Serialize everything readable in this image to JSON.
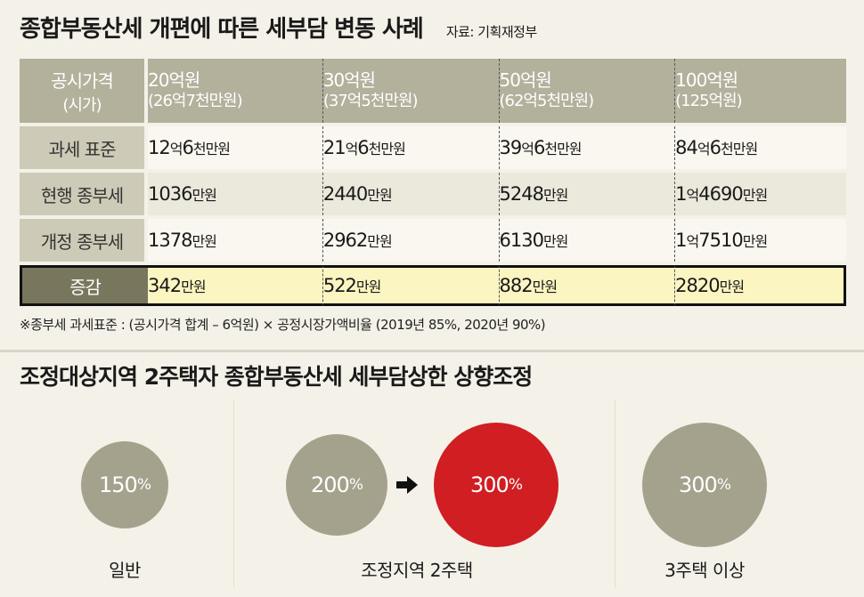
{
  "title": "종합부동산세 개편에 따른 세부담 변동 사례",
  "source": "자료: 기획재정부",
  "table": {
    "corner": {
      "line1": "공시가격",
      "line2": "(시가)"
    },
    "columns": [
      {
        "price": "20억원",
        "market": "(26억7천만원)"
      },
      {
        "price": "30억원",
        "market": "(37억5천만원)"
      },
      {
        "price": "50억원",
        "market": "(62억5천만원)"
      },
      {
        "price": "100억원",
        "market": "(125억원)"
      }
    ],
    "rows": [
      {
        "label": "과세 표준",
        "cells": [
          {
            "a": "12",
            "b": "억",
            "c": "6",
            "d": "천만원"
          },
          {
            "a": "21",
            "b": "억",
            "c": "6",
            "d": "천만원"
          },
          {
            "a": "39",
            "b": "억",
            "c": "6",
            "d": "천만원"
          },
          {
            "a": "84",
            "b": "억",
            "c": "6",
            "d": "천만원"
          }
        ]
      },
      {
        "label": "현행 종부세",
        "cells": [
          {
            "a": "",
            "b": "",
            "c": "1036",
            "d": "만원"
          },
          {
            "a": "",
            "b": "",
            "c": "2440",
            "d": "만원"
          },
          {
            "a": "",
            "b": "",
            "c": "5248",
            "d": "만원"
          },
          {
            "a": "1",
            "b": "억",
            "c": "4690",
            "d": "만원"
          }
        ]
      },
      {
        "label": "개정 종부세",
        "cells": [
          {
            "a": "",
            "b": "",
            "c": "1378",
            "d": "만원"
          },
          {
            "a": "",
            "b": "",
            "c": "2962",
            "d": "만원"
          },
          {
            "a": "",
            "b": "",
            "c": "6130",
            "d": "만원"
          },
          {
            "a": "1",
            "b": "억",
            "c": "7510",
            "d": "만원"
          }
        ]
      }
    ],
    "total": {
      "label": "증감",
      "cells": [
        {
          "c": "342",
          "d": "만원"
        },
        {
          "c": "522",
          "d": "만원"
        },
        {
          "c": "882",
          "d": "만원"
        },
        {
          "c": "2820",
          "d": "만원"
        }
      ]
    }
  },
  "note": "※종부세 과세표준 : (공시가격 합계 – 6억원) × 공정시장가액비율 (2019년 85%, 2020년 90%)",
  "subtitle": "조정대상지역 2주택자 종합부동산세 세부담상한 상향조정",
  "chart_data": {
    "type": "bubble",
    "unit": "%",
    "groups": [
      {
        "label": "일반",
        "values": [
          150
        ]
      },
      {
        "label": "조정지역 2주택",
        "values": [
          200,
          300
        ],
        "highlight_index": 1
      },
      {
        "label": "3주택 이상",
        "values": [
          300
        ]
      }
    ],
    "colors": {
      "bubble": "#a4a28c",
      "highlight": "#d01e23"
    },
    "icon": "arrow-right-icon"
  }
}
